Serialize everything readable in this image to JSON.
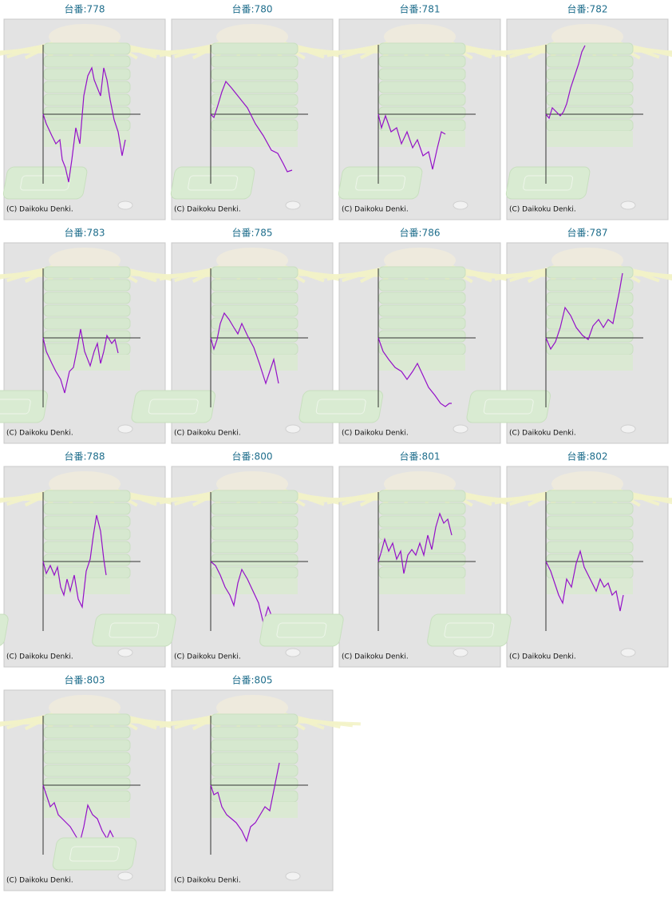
{
  "chart_data": [
    {
      "type": "line",
      "title": "台番:778",
      "annotation": "(C) Daikoku Denki.",
      "color": "#9410c8",
      "xlim": [
        0,
        122
      ],
      "ylim": [
        -87,
        87
      ],
      "x": [
        0,
        4,
        11,
        16,
        21,
        24,
        28,
        32,
        36,
        41,
        46,
        51,
        56,
        61,
        64,
        68,
        72,
        76,
        80,
        84,
        89,
        94,
        99,
        103
      ],
      "values": [
        0,
        -12,
        -27,
        -37,
        -32,
        -57,
        -67,
        -85,
        -57,
        -17,
        -37,
        23,
        48,
        58,
        43,
        33,
        23,
        58,
        43,
        18,
        -7,
        -22,
        -52,
        -32
      ]
    },
    {
      "type": "line",
      "title": "台番:780",
      "annotation": "(C) Daikoku Denki.",
      "color": "#9410c8",
      "xlim": [
        0,
        122
      ],
      "ylim": [
        -87,
        87
      ],
      "x": [
        0,
        4,
        8,
        14,
        19,
        26,
        34,
        46,
        56,
        66,
        76,
        84,
        91,
        96,
        102
      ],
      "values": [
        0,
        -4,
        8,
        28,
        41,
        33,
        23,
        8,
        -12,
        -27,
        -45,
        -49,
        -62,
        -72,
        -70
      ]
    },
    {
      "type": "line",
      "title": "台番:781",
      "annotation": "(C) Daikoku Denki.",
      "color": "#9410c8",
      "xlim": [
        0,
        122
      ],
      "ylim": [
        -87,
        87
      ],
      "x": [
        0,
        4,
        9,
        16,
        23,
        29,
        36,
        43,
        49,
        56,
        63,
        68,
        74,
        79,
        84
      ],
      "values": [
        0,
        -17,
        -2,
        -22,
        -17,
        -37,
        -22,
        -42,
        -32,
        -52,
        -47,
        -69,
        -42,
        -22,
        -25
      ]
    },
    {
      "type": "line",
      "title": "台番:782",
      "annotation": "(C) Daikoku Denki.",
      "color": "#9410c8",
      "xlim": [
        0,
        122
      ],
      "ylim": [
        -87,
        87
      ],
      "x": [
        0,
        4,
        8,
        13,
        18,
        22,
        26,
        31,
        36,
        41,
        45,
        49
      ],
      "values": [
        0,
        -5,
        8,
        3,
        -2,
        3,
        13,
        33,
        48,
        63,
        78,
        86
      ]
    },
    {
      "type": "line",
      "title": "台番:783",
      "annotation": "(C) Daikoku Denki.",
      "color": "#9410c8",
      "xlim": [
        0,
        122
      ],
      "ylim": [
        -87,
        87
      ],
      "x": [
        0,
        4,
        11,
        16,
        22,
        27,
        33,
        38,
        43,
        47,
        52,
        59,
        64,
        68,
        72,
        76,
        80,
        86,
        90,
        94
      ],
      "values": [
        0,
        -17,
        -32,
        -42,
        -52,
        -69,
        -42,
        -37,
        -12,
        11,
        -17,
        -35,
        -17,
        -7,
        -32,
        -17,
        3,
        -7,
        -2,
        -19
      ]
    },
    {
      "type": "line",
      "title": "台番:785",
      "annotation": "(C) Daikoku Denki.",
      "color": "#9410c8",
      "xlim": [
        0,
        122
      ],
      "ylim": [
        -87,
        87
      ],
      "x": [
        0,
        4,
        8,
        12,
        17,
        23,
        29,
        34,
        39,
        46,
        54,
        61,
        69,
        74,
        79,
        85
      ],
      "values": [
        0,
        -14,
        -2,
        18,
        31,
        23,
        13,
        5,
        18,
        3,
        -12,
        -32,
        -57,
        -42,
        -27,
        -57
      ]
    },
    {
      "type": "line",
      "title": "台番:786",
      "annotation": "(C) Daikoku Denki.",
      "color": "#9410c8",
      "xlim": [
        0,
        122
      ],
      "ylim": [
        -87,
        87
      ],
      "x": [
        0,
        6,
        13,
        21,
        29,
        36,
        43,
        49,
        56,
        63,
        71,
        78,
        84,
        89,
        92
      ],
      "values": [
        0,
        -17,
        -27,
        -37,
        -42,
        -52,
        -42,
        -32,
        -47,
        -62,
        -72,
        -82,
        -86,
        -82,
        -82
      ]
    },
    {
      "type": "line",
      "title": "台番:787",
      "annotation": "(C) Daikoku Denki.",
      "color": "#9410c8",
      "xlim": [
        0,
        122
      ],
      "ylim": [
        -87,
        87
      ],
      "x": [
        0,
        6,
        12,
        18,
        24,
        31,
        38,
        46,
        53,
        59,
        66,
        72,
        78,
        84,
        88,
        92,
        96
      ],
      "values": [
        0,
        -14,
        -5,
        13,
        38,
        28,
        13,
        3,
        -2,
        15,
        23,
        13,
        23,
        18,
        38,
        58,
        81
      ]
    },
    {
      "type": "line",
      "title": "台番:788",
      "annotation": "(C) Daikoku Denki.",
      "color": "#9410c8",
      "xlim": [
        0,
        122
      ],
      "ylim": [
        -87,
        87
      ],
      "x": [
        0,
        4,
        9,
        14,
        18,
        22,
        26,
        30,
        34,
        39,
        44,
        49,
        54,
        59,
        63,
        67,
        72,
        76,
        79
      ],
      "values": [
        0,
        -15,
        -5,
        -17,
        -7,
        -32,
        -42,
        -22,
        -37,
        -17,
        -47,
        -57,
        -12,
        3,
        33,
        58,
        38,
        3,
        -17
      ]
    },
    {
      "type": "line",
      "title": "台番:800",
      "annotation": "(C) Daikoku Denki.",
      "color": "#9410c8",
      "xlim": [
        0,
        122
      ],
      "ylim": [
        -87,
        87
      ],
      "x": [
        0,
        6,
        12,
        18,
        24,
        29,
        34,
        39,
        46,
        53,
        60,
        66,
        72,
        79
      ],
      "values": [
        0,
        -5,
        -17,
        -32,
        -42,
        -55,
        -27,
        -10,
        -22,
        -37,
        -52,
        -77,
        -57,
        -75
      ]
    },
    {
      "type": "line",
      "title": "台番:801",
      "annotation": "(C) Daikoku Denki.",
      "color": "#9410c8",
      "xlim": [
        0,
        122
      ],
      "ylim": [
        -87,
        87
      ],
      "x": [
        0,
        4,
        8,
        13,
        18,
        23,
        28,
        32,
        37,
        42,
        47,
        52,
        57,
        62,
        67,
        72,
        77,
        82,
        87,
        92
      ],
      "values": [
        0,
        13,
        28,
        13,
        23,
        3,
        13,
        -15,
        8,
        15,
        8,
        23,
        8,
        33,
        15,
        43,
        60,
        48,
        53,
        33
      ]
    },
    {
      "type": "line",
      "title": "台番:802",
      "annotation": "(C) Daikoku Denki.",
      "color": "#9410c8",
      "xlim": [
        0,
        122
      ],
      "ylim": [
        -87,
        87
      ],
      "x": [
        0,
        6,
        11,
        16,
        21,
        26,
        32,
        38,
        43,
        48,
        53,
        58,
        63,
        68,
        73,
        78,
        83,
        88,
        93,
        97
      ],
      "values": [
        0,
        -12,
        -27,
        -42,
        -52,
        -22,
        -32,
        -2,
        13,
        -7,
        -17,
        -27,
        -37,
        -22,
        -32,
        -27,
        -42,
        -37,
        -62,
        -42
      ]
    },
    {
      "type": "line",
      "title": "台番:803",
      "annotation": "(C) Daikoku Denki.",
      "color": "#9410c8",
      "xlim": [
        0,
        122
      ],
      "ylim": [
        -87,
        87
      ],
      "x": [
        0,
        4,
        9,
        14,
        19,
        24,
        29,
        34,
        40,
        46,
        51,
        56,
        62,
        68,
        74,
        80,
        84,
        88
      ],
      "values": [
        0,
        -12,
        -27,
        -22,
        -37,
        -42,
        -47,
        -52,
        -62,
        -72,
        -52,
        -25,
        -37,
        -42,
        -57,
        -67,
        -57,
        -65
      ]
    },
    {
      "type": "line",
      "title": "台番:805",
      "annotation": "(C) Daikoku Denki.",
      "color": "#9410c8",
      "xlim": [
        0,
        122
      ],
      "ylim": [
        -87,
        87
      ],
      "x": [
        0,
        4,
        9,
        14,
        20,
        26,
        32,
        39,
        45,
        50,
        56,
        62,
        68,
        74,
        78,
        82,
        86
      ],
      "values": [
        0,
        -12,
        -9,
        -27,
        -37,
        -42,
        -47,
        -57,
        -70,
        -52,
        -47,
        -37,
        -27,
        -32,
        -12,
        8,
        28
      ]
    }
  ]
}
